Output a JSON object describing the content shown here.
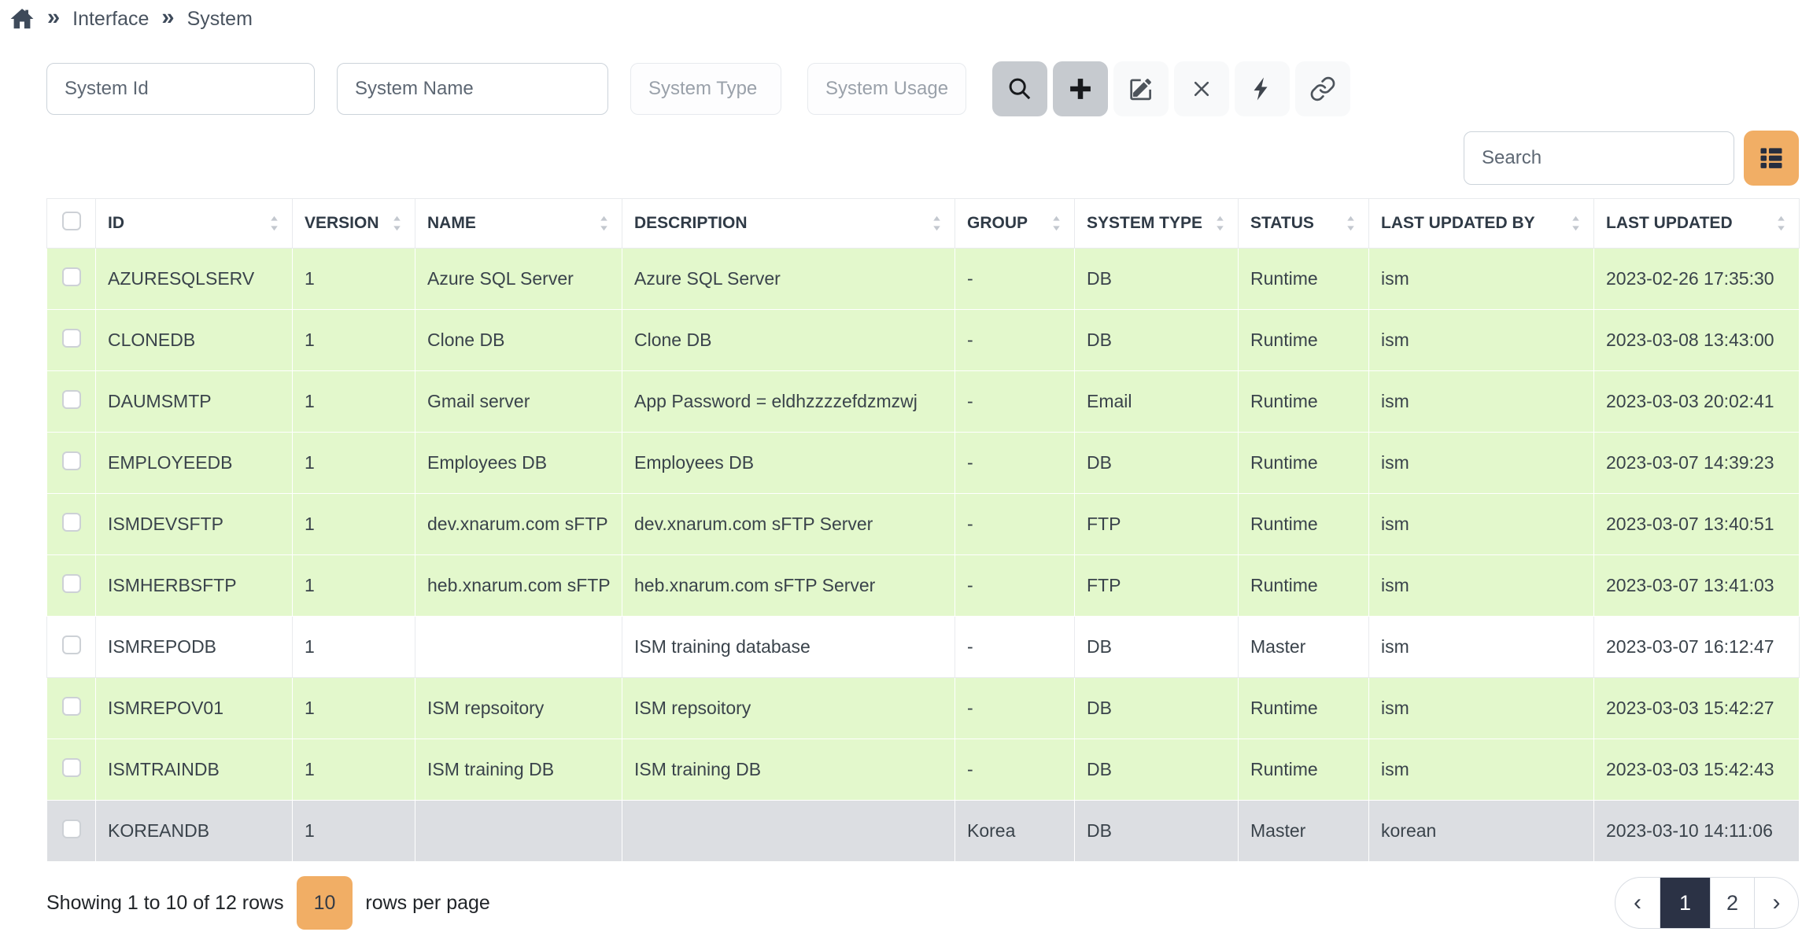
{
  "breadcrumb": {
    "home_icon": "home-icon",
    "items": [
      "Interface",
      "System"
    ]
  },
  "filters": [
    {
      "placeholder": "System Id",
      "variant": "enabled"
    },
    {
      "placeholder": "System Name",
      "variant": "enabled"
    },
    {
      "placeholder": "System Type",
      "variant": "muted"
    },
    {
      "placeholder": "System Usage",
      "variant": "muted"
    }
  ],
  "toolbar": {
    "buttons": [
      {
        "name": "search-button",
        "icon": "magnifier-icon",
        "variant": "gray"
      },
      {
        "name": "add-button",
        "icon": "plus-icon",
        "variant": "gray"
      },
      {
        "name": "edit-button",
        "icon": "edit-icon",
        "variant": "light"
      },
      {
        "name": "clear-button",
        "icon": "close-icon",
        "variant": "light"
      },
      {
        "name": "execute-button",
        "icon": "lightning-icon",
        "variant": "light"
      },
      {
        "name": "link-button",
        "icon": "link-icon",
        "variant": "light"
      }
    ]
  },
  "search": {
    "placeholder": "Search",
    "toggle_icon": "table-columns-icon"
  },
  "table": {
    "columns": [
      {
        "label": "",
        "type": "checkbox",
        "sortable": false
      },
      {
        "label": "ID",
        "sortable": true
      },
      {
        "label": "VERSION",
        "sortable": true
      },
      {
        "label": "NAME",
        "sortable": true
      },
      {
        "label": "DESCRIPTION",
        "sortable": true
      },
      {
        "label": "GROUP",
        "sortable": true
      },
      {
        "label": "SYSTEM TYPE",
        "sortable": true
      },
      {
        "label": "STATUS",
        "sortable": true
      },
      {
        "label": "LAST UPDATED BY",
        "sortable": true
      },
      {
        "label": "LAST UPDATED",
        "sortable": true
      }
    ],
    "rows": [
      {
        "variant": "green",
        "cells": [
          "AZURESQLSERV",
          "1",
          "Azure SQL Server",
          "Azure SQL Server",
          "-",
          "DB",
          "Runtime",
          "ism",
          "2023-02-26 17:35:30"
        ]
      },
      {
        "variant": "green",
        "cells": [
          "CLONEDB",
          "1",
          "Clone DB",
          "Clone DB",
          "-",
          "DB",
          "Runtime",
          "ism",
          "2023-03-08 13:43:00"
        ]
      },
      {
        "variant": "green",
        "cells": [
          "DAUMSMTP",
          "1",
          "Gmail server",
          "App Password = eldhzzzzefdzmzwj",
          "-",
          "Email",
          "Runtime",
          "ism",
          "2023-03-03 20:02:41"
        ]
      },
      {
        "variant": "green",
        "cells": [
          "EMPLOYEEDB",
          "1",
          "Employees DB",
          "Employees DB",
          "-",
          "DB",
          "Runtime",
          "ism",
          "2023-03-07 14:39:23"
        ]
      },
      {
        "variant": "green",
        "cells": [
          "ISMDEVSFTP",
          "1",
          "dev.xnarum.com sFTP",
          "dev.xnarum.com sFTP Server",
          "-",
          "FTP",
          "Runtime",
          "ism",
          "2023-03-07 13:40:51"
        ]
      },
      {
        "variant": "green",
        "cells": [
          "ISMHERBSFTP",
          "1",
          "heb.xnarum.com sFTP",
          "heb.xnarum.com sFTP Server",
          "-",
          "FTP",
          "Runtime",
          "ism",
          "2023-03-07 13:41:03"
        ]
      },
      {
        "variant": "white",
        "cells": [
          "ISMREPODB",
          "1",
          "",
          "ISM training database",
          "-",
          "DB",
          "Master",
          "ism",
          "2023-03-07 16:12:47"
        ]
      },
      {
        "variant": "green",
        "cells": [
          "ISMREPOV01",
          "1",
          "ISM repsoitory",
          "ISM repsoitory",
          "-",
          "DB",
          "Runtime",
          "ism",
          "2023-03-03 15:42:27"
        ]
      },
      {
        "variant": "green",
        "cells": [
          "ISMTRAINDB",
          "1",
          "ISM training DB",
          "ISM training DB",
          "-",
          "DB",
          "Runtime",
          "ism",
          "2023-03-03 15:42:43"
        ]
      },
      {
        "variant": "gray",
        "cells": [
          "KOREANDB",
          "1",
          "",
          "",
          "Korea",
          "DB",
          "Master",
          "korean",
          "2023-03-10 14:11:06"
        ]
      }
    ]
  },
  "footer": {
    "showing_text": "Showing 1 to 10 of 12 rows",
    "page_size": "10",
    "rows_per_page_label": "rows per page",
    "pagination": {
      "items": [
        {
          "label": "‹",
          "type": "prev",
          "active": false
        },
        {
          "label": "1",
          "type": "page",
          "active": true
        },
        {
          "label": "2",
          "type": "page",
          "active": false
        },
        {
          "label": "›",
          "type": "next",
          "active": false
        }
      ]
    }
  },
  "colors": {
    "accent_orange": "#f1ae65",
    "active_page_bg": "#2b3245",
    "row_green": "#e3f8cc",
    "row_gray": "#dcdee2"
  }
}
